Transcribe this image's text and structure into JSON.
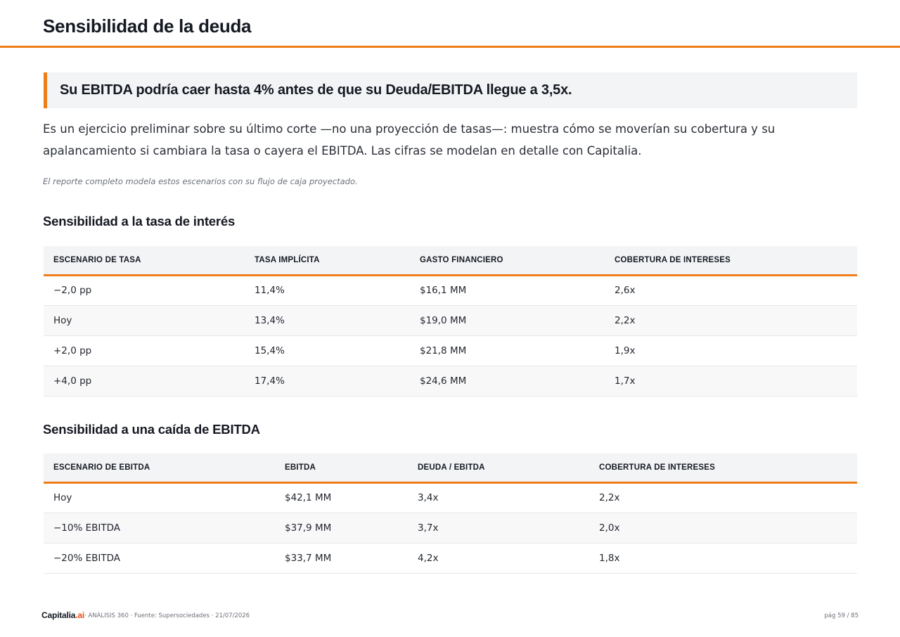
{
  "header": {
    "title": "Sensibilidad de la deuda"
  },
  "callout": {
    "text": "Su EBITDA podría caer hasta 4% antes de que su Deuda/EBITDA llegue a 3,5x."
  },
  "intro": "Es un ejercicio preliminar sobre su último corte —no una proyección de tasas—: muestra cómo se moverían su cobertura y su apalancamiento si cambiara la tasa o cayera el EBITDA. Las cifras se modelan en detalle con Capitalia.",
  "note": "El reporte completo modela estos escenarios con su flujo de caja proyectado.",
  "rate_section": {
    "title": "Sensibilidad a la tasa de interés",
    "headers": [
      "ESCENARIO DE TASA",
      "TASA IMPLÍCITA",
      "GASTO FINANCIERO",
      "COBERTURA DE INTERESES"
    ],
    "rows": [
      [
        "−2,0 pp",
        "11,4%",
        "$16,1 MM",
        "2,6x"
      ],
      [
        "Hoy",
        "13,4%",
        "$19,0 MM",
        "2,2x"
      ],
      [
        "+2,0 pp",
        "15,4%",
        "$21,8 MM",
        "1,9x"
      ],
      [
        "+4,0 pp",
        "17,4%",
        "$24,6 MM",
        "1,7x"
      ]
    ]
  },
  "ebitda_section": {
    "title": "Sensibilidad a una caída de EBITDA",
    "headers": [
      "ESCENARIO DE EBITDA",
      "EBITDA",
      "DEUDA / EBITDA",
      "COBERTURA DE INTERESES"
    ],
    "rows": [
      [
        "Hoy",
        "$42,1 MM",
        "3,4x",
        "2,2x"
      ],
      [
        "−10% EBITDA",
        "$37,9 MM",
        "3,7x",
        "2,0x"
      ],
      [
        "−20% EBITDA",
        "$33,7 MM",
        "4,2x",
        "1,8x"
      ]
    ]
  },
  "footer": {
    "brand_main": "Capitalia",
    "brand_accent": ".ai",
    "meta": "· ANÁLISIS 360 · Fuente: Supersociedades · 21/07/2026",
    "page": "pág 59 / 85"
  },
  "colors": {
    "accent": "#ef7d1a",
    "brand_accent": "#e84a1a"
  }
}
